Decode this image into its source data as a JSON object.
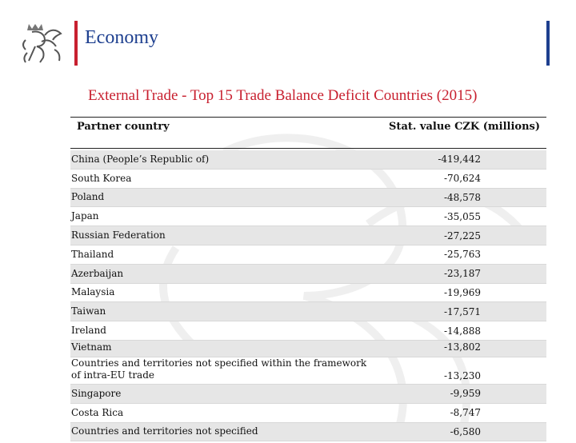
{
  "header": {
    "title": "Economy",
    "colors": {
      "red": "#c8202f",
      "blue": "#1d3f8f"
    },
    "logo_icon": "bohemian-lion-icon"
  },
  "subtitle": "External Trade - Top 15 Trade Balance Deficit Countries (2015)",
  "table": {
    "columns": [
      "Partner country",
      "Stat. value CZK (millions)"
    ],
    "rows": [
      {
        "country": "China (People’s Republic of)",
        "value": "-419,442"
      },
      {
        "country": "South Korea",
        "value": "-70,624"
      },
      {
        "country": "Poland",
        "value": "-48,578"
      },
      {
        "country": "Japan",
        "value": "-35,055"
      },
      {
        "country": "Russian Federation",
        "value": "-27,225"
      },
      {
        "country": "Thailand",
        "value": "-25,763"
      },
      {
        "country": "Azerbaijan",
        "value": "-23,187"
      },
      {
        "country": "Malaysia",
        "value": "-19,969"
      },
      {
        "country": "Taiwan",
        "value": "-17,571"
      },
      {
        "country": "Ireland",
        "value": "-14,888"
      },
      {
        "country": "Vietnam",
        "value": "-13,802"
      },
      {
        "country": "Countries and territories not specified within the framework of intra-EU trade",
        "value": "-13,230"
      },
      {
        "country": "Singapore",
        "value": "-9,959"
      },
      {
        "country": "Costa Rica",
        "value": "-8,747"
      },
      {
        "country": "Countries and territories not specified",
        "value": "-6,580"
      }
    ]
  }
}
